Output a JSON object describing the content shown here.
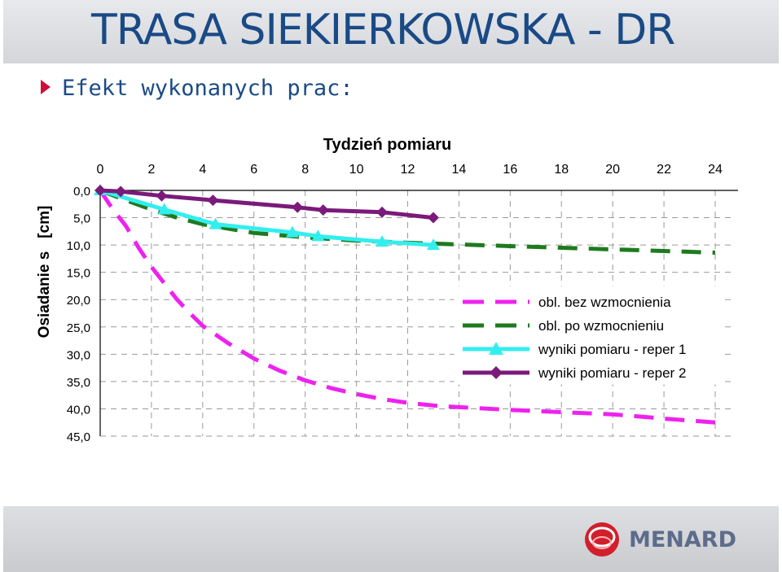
{
  "header": {
    "title": "TRASA SIEKIERKOWSKA - DR",
    "subtitle": "Efekt wykonanych prac:"
  },
  "footer": {
    "logo_text": "MENARD"
  },
  "colors": {
    "title_text": "#1a4a86",
    "bullet": "#d0103a",
    "logo_red": "#d21f2b",
    "logo_text": "#5d6c8a"
  },
  "chart_data": {
    "type": "line",
    "title": "Tydzień pomiaru",
    "xlabel": "",
    "ylabel": "Osiadanie s   [cm]",
    "x_ticks": [
      0,
      2,
      4,
      6,
      8,
      10,
      12,
      14,
      16,
      18,
      20,
      22,
      24
    ],
    "y_ticks": [
      "0,0",
      "5,0",
      "10,0",
      "15,0",
      "20,0",
      "25,0",
      "30,0",
      "35,0",
      "40,0",
      "45,0"
    ],
    "xlim": [
      0,
      24
    ],
    "ylim": [
      0,
      45
    ],
    "y_inverted": true,
    "x_axis_position": "top",
    "grid": "dashed",
    "legend_position": "right",
    "series": [
      {
        "name": "obl. bez wzmocnienia",
        "color": "#ee22ee",
        "style": "dashed",
        "marker": "none",
        "x": [
          0,
          0.5,
          1,
          1.5,
          2,
          2.5,
          3,
          3.5,
          4,
          5,
          6,
          7,
          8,
          9,
          10,
          11,
          12,
          13,
          14,
          16,
          18,
          20,
          22,
          24
        ],
        "y": [
          0,
          3.5,
          6.5,
          10.5,
          14.0,
          17.0,
          20.0,
          22.5,
          24.8,
          28.0,
          30.8,
          33.0,
          34.8,
          36.2,
          37.3,
          38.2,
          38.9,
          39.4,
          39.7,
          40.2,
          40.6,
          41.0,
          41.8,
          42.5
        ]
      },
      {
        "name": "obl. po wzmocnieniu",
        "color": "#1e7a1e",
        "style": "dashed",
        "marker": "none",
        "x": [
          0,
          1,
          2,
          3,
          4,
          5,
          6,
          7,
          8,
          10,
          12,
          14,
          16,
          18,
          20,
          22,
          24
        ],
        "y": [
          0,
          1.8,
          3.5,
          5.0,
          6.2,
          7.0,
          7.8,
          8.2,
          8.6,
          9.2,
          9.6,
          9.9,
          10.2,
          10.5,
          10.8,
          11.1,
          11.4
        ]
      },
      {
        "name": "wyniki pomiaru - reper 1",
        "color": "#33eeee",
        "style": "solid",
        "marker": "triangle",
        "x": [
          0,
          2.5,
          4.5,
          7.5,
          8.5,
          11,
          13
        ],
        "y": [
          0,
          3.5,
          6.2,
          7.7,
          8.4,
          9.4,
          10.0
        ]
      },
      {
        "name": "wyniki pomiaru - reper 2",
        "color": "#7a1a7a",
        "style": "solid",
        "marker": "diamond",
        "x": [
          0,
          0.8,
          2.4,
          4.4,
          7.7,
          8.7,
          11,
          13
        ],
        "y": [
          0,
          0.2,
          1.0,
          1.8,
          3.1,
          3.6,
          4.0,
          5.0
        ]
      }
    ]
  }
}
